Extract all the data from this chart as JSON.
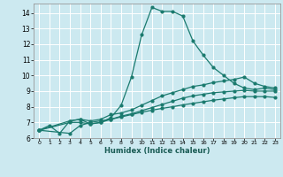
{
  "xlabel": "Humidex (Indice chaleur)",
  "background_color": "#cce9f0",
  "grid_color": "#ffffff",
  "line_color": "#1a7a6e",
  "xlim": [
    -0.5,
    23.5
  ],
  "ylim": [
    6.0,
    14.6
  ],
  "xticks": [
    0,
    1,
    2,
    3,
    4,
    5,
    6,
    7,
    8,
    9,
    10,
    11,
    12,
    13,
    14,
    15,
    16,
    17,
    18,
    19,
    20,
    21,
    22,
    23
  ],
  "yticks": [
    6,
    7,
    8,
    9,
    10,
    11,
    12,
    13,
    14
  ],
  "lines": [
    {
      "x": [
        0,
        1,
        2,
        3,
        4,
        5,
        6,
        7,
        8,
        9,
        10,
        11,
        12,
        13,
        14,
        15,
        16,
        17,
        18,
        19,
        20,
        21,
        22,
        23
      ],
      "y": [
        6.5,
        6.8,
        6.3,
        7.1,
        7.2,
        6.9,
        7.0,
        7.3,
        8.1,
        9.9,
        12.6,
        14.35,
        14.1,
        14.1,
        13.8,
        12.2,
        11.3,
        10.5,
        10.0,
        9.5,
        9.2,
        9.1,
        9.2,
        9.1
      ]
    },
    {
      "x": [
        0,
        3,
        4,
        5,
        6,
        7,
        8,
        9,
        10,
        11,
        12,
        13,
        14,
        15,
        16,
        17,
        18,
        19,
        20,
        21,
        22,
        23
      ],
      "y": [
        6.5,
        7.1,
        7.2,
        7.1,
        7.2,
        7.5,
        7.6,
        7.8,
        8.1,
        8.4,
        8.7,
        8.9,
        9.1,
        9.3,
        9.4,
        9.55,
        9.65,
        9.75,
        9.9,
        9.5,
        9.3,
        9.2
      ]
    },
    {
      "x": [
        0,
        3,
        4,
        5,
        6,
        7,
        8,
        9,
        10,
        11,
        12,
        13,
        14,
        15,
        16,
        17,
        18,
        19,
        20,
        21,
        22,
        23
      ],
      "y": [
        6.5,
        6.3,
        6.8,
        7.0,
        7.1,
        7.2,
        7.4,
        7.55,
        7.75,
        7.95,
        8.15,
        8.35,
        8.55,
        8.7,
        8.8,
        8.9,
        8.95,
        9.0,
        9.05,
        9.0,
        9.0,
        9.0
      ]
    },
    {
      "x": [
        0,
        3,
        4,
        5,
        6,
        7,
        8,
        9,
        10,
        11,
        12,
        13,
        14,
        15,
        16,
        17,
        18,
        19,
        20,
        21,
        22,
        23
      ],
      "y": [
        6.5,
        7.0,
        7.0,
        6.9,
        7.0,
        7.2,
        7.35,
        7.5,
        7.65,
        7.78,
        7.9,
        8.0,
        8.12,
        8.22,
        8.32,
        8.42,
        8.5,
        8.58,
        8.65,
        8.65,
        8.65,
        8.6
      ]
    }
  ]
}
